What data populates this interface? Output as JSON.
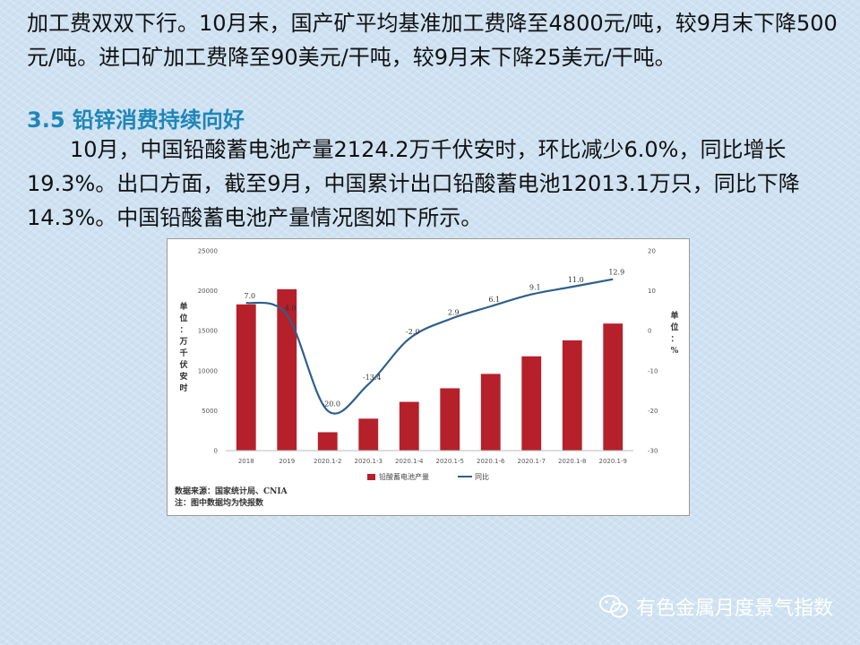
{
  "text": {
    "para1": "加工费双双下行。10月末，国产矿平均基准加工费降至4800元/吨，较9月末下降500元/吨。进口矿加工费降至90美元/干吨，较9月末下降25美元/干吨。",
    "heading": "3.5 铅锌消费持续向好",
    "para2": "　　10月，中国铅酸蓄电池产量2124.2万千伏安时，环比减少6.0%，同比增长19.3%。出口方面，截至9月，中国累计出口铅酸蓄电池12013.1万只，同比下降14.3%。中国铅酸蓄电池产量情况图如下所示。"
  },
  "chart_data": {
    "type": "bar",
    "categories": [
      "2018",
      "2019",
      "2020.1-2",
      "2020.1-3",
      "2020.1-4",
      "2020.1-5",
      "2020.1-6",
      "2020.1-7",
      "2020.1-8",
      "2020.1-9"
    ],
    "series": [
      {
        "name": "铅酸蓄电池产量",
        "type": "bar",
        "axis": "left",
        "color": "#b5202b",
        "values": [
          18300,
          20200,
          2300,
          4000,
          6100,
          7800,
          9600,
          11800,
          13800,
          15900
        ]
      },
      {
        "name": "同比",
        "type": "line",
        "axis": "right",
        "color": "#2e5f8c",
        "values": [
          7.0,
          4.0,
          -20.0,
          -13.4,
          -2.0,
          2.9,
          6.1,
          9.1,
          11.0,
          12.9
        ],
        "labels": [
          "7.0",
          "4.0",
          "-20.0",
          "-13.4",
          "-2.0",
          "2.9",
          "6.1",
          "9.1",
          "11.0",
          "12.9"
        ]
      }
    ],
    "y_left": {
      "label": "单位：万千伏安时",
      "ticks": [
        0,
        5000,
        10000,
        15000,
        20000,
        25000
      ],
      "range": [
        0,
        25000
      ]
    },
    "y_right": {
      "label": "单位：%",
      "ticks": [
        -30,
        -20,
        -10,
        0,
        10,
        20
      ],
      "range": [
        -30,
        20
      ]
    },
    "legend_position": "bottom",
    "grid": false,
    "source": "数据来源：国家统计局、CNIA",
    "note": "注：图中数据均为快报数"
  },
  "watermark": {
    "text": "有色金属月度景气指数",
    "icon": "wechat-icon"
  }
}
